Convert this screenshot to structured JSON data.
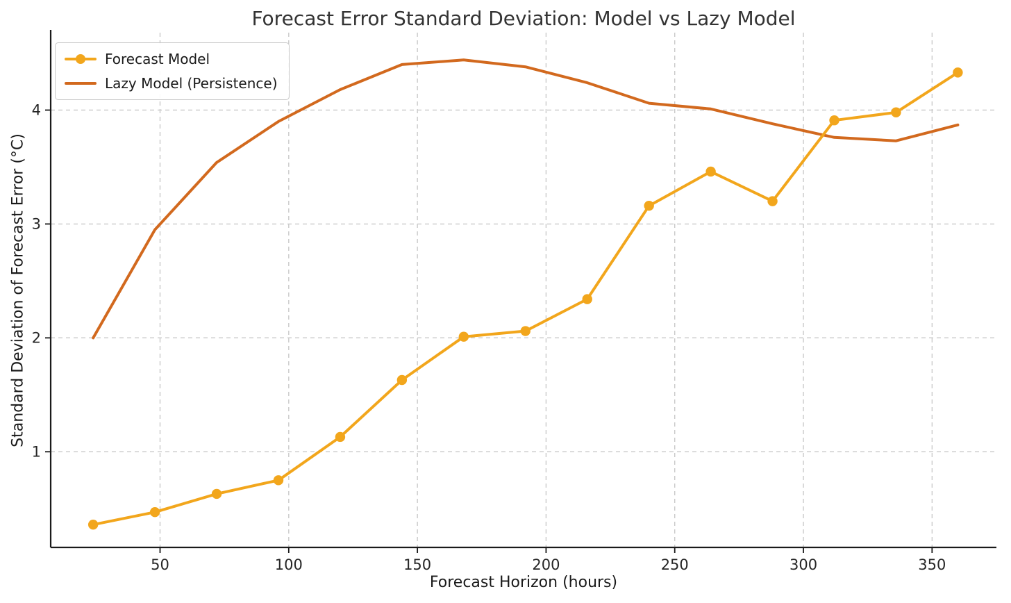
{
  "title": "Forecast Error Standard Deviation: Model vs Lazy Model",
  "chart_data": {
    "type": "line",
    "title": "Forecast Error Standard Deviation: Model vs Lazy Model",
    "xlabel": "Forecast Horizon (hours)",
    "ylabel": "Standard Deviation of Forecast Error (°C)",
    "x": [
      24,
      48,
      72,
      96,
      120,
      144,
      168,
      192,
      216,
      240,
      264,
      288,
      312,
      336,
      360
    ],
    "series": [
      {
        "name": "Forecast Model",
        "color": "#F2A61C",
        "marker": "circle",
        "values": [
          0.36,
          0.47,
          0.63,
          0.75,
          1.13,
          1.63,
          2.01,
          2.06,
          2.34,
          3.16,
          3.46,
          3.2,
          3.91,
          3.98,
          4.33
        ]
      },
      {
        "name": "Lazy Model (Persistence)",
        "color": "#D2691E",
        "marker": "none",
        "values": [
          2.0,
          2.95,
          3.54,
          3.9,
          4.18,
          4.4,
          4.44,
          4.38,
          4.24,
          4.06,
          4.01,
          3.88,
          3.76,
          3.73,
          3.87
        ]
      }
    ],
    "xticks": [
      50,
      100,
      150,
      200,
      250,
      300,
      350
    ],
    "yticks": [
      1,
      2,
      3,
      4
    ],
    "xlim": [
      7.5,
      375
    ],
    "ylim": [
      0.16,
      4.68
    ],
    "grid": true,
    "grid_style": "dashed",
    "legend_position": "upper-left",
    "colors": {
      "grid": "#c9c9c9",
      "spine": "#1a1a1a",
      "tick_text": "#262626"
    }
  }
}
